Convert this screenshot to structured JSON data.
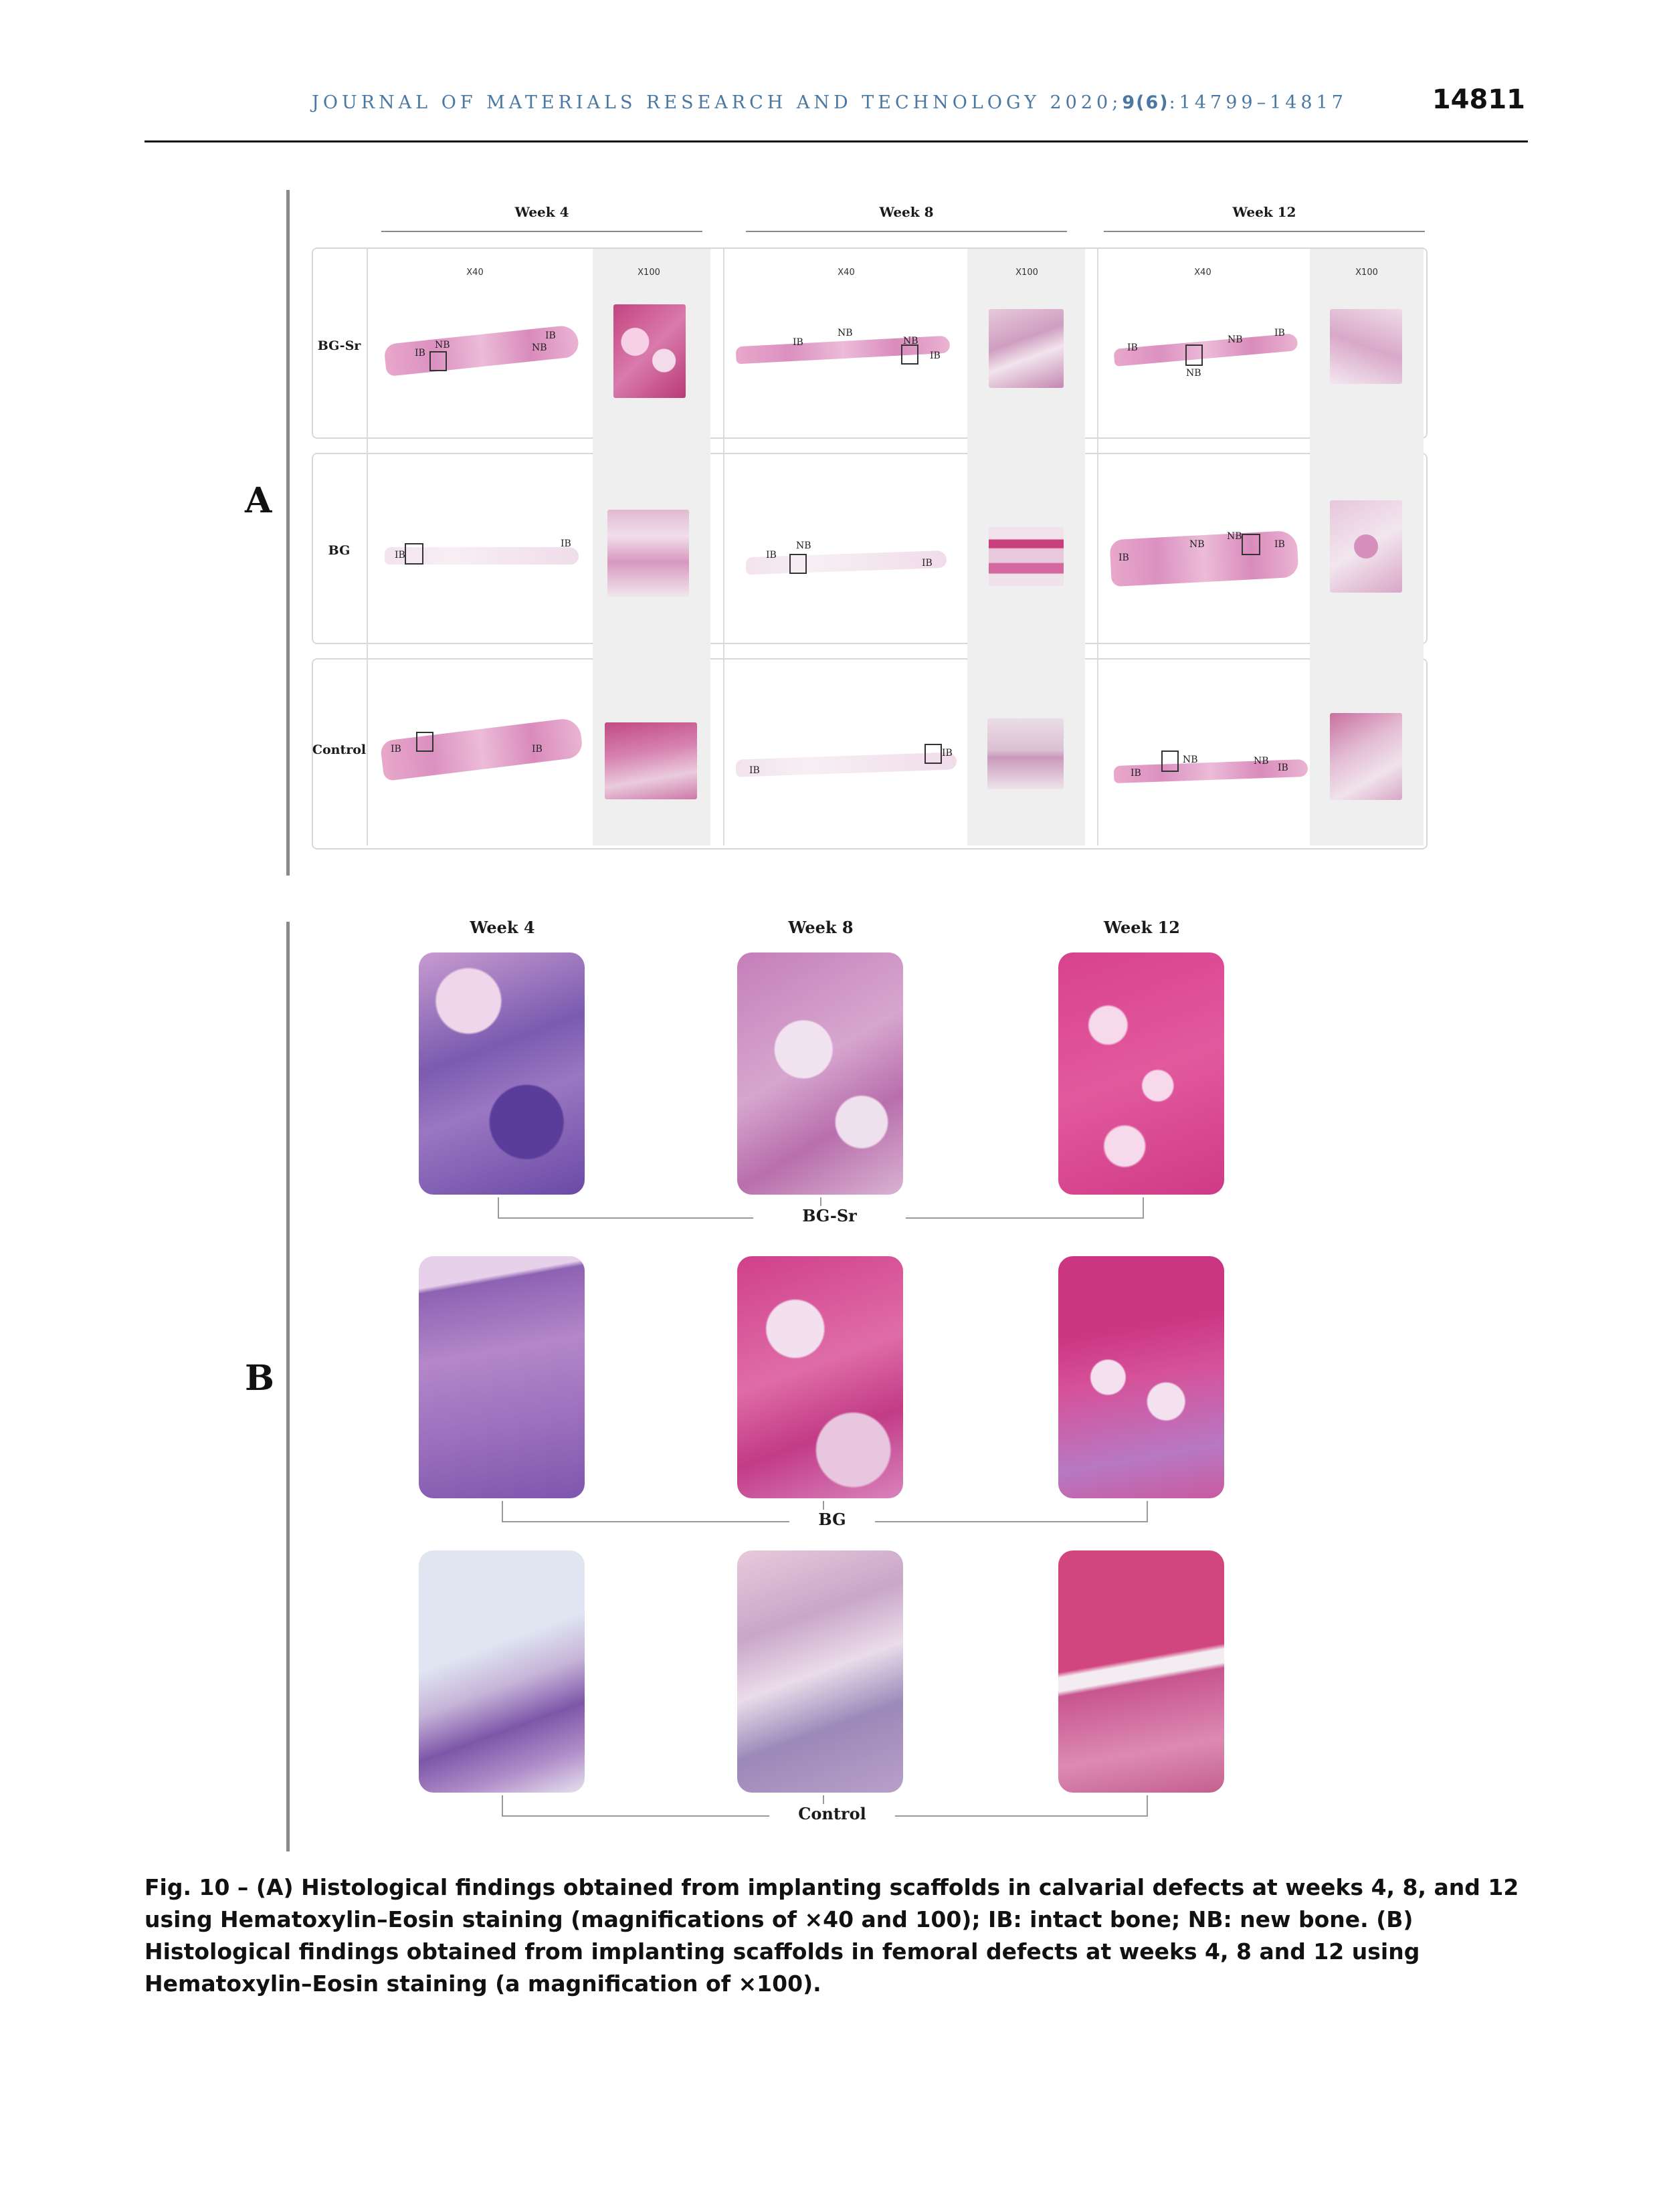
{
  "header": {
    "journal_prefix": "JOURNAL OF MATERIALS RESEARCH AND TECHNOLOGY 2020;",
    "journal_volume": "9(6)",
    "journal_pages": ":14799–14817",
    "page_number": "14811"
  },
  "figure": {
    "panel_a": {
      "letter": "A",
      "weeks": [
        "Week 4",
        "Week 8",
        "Week 12"
      ],
      "magnifications": [
        "X40",
        "X100"
      ],
      "rows": [
        "BG-Sr",
        "BG",
        "Control"
      ],
      "tags": {
        "ib": "IB",
        "nb": "NB"
      }
    },
    "panel_b": {
      "letter": "B",
      "weeks": [
        "Week 4",
        "Week 8",
        "Week 12"
      ],
      "groups": [
        "BG-Sr",
        "BG",
        "Control"
      ]
    }
  },
  "caption": "Fig. 10 – (A) Histological findings obtained from implanting scaffolds in calvarial defects at weeks 4, 8, and 12 using Hematoxylin–Eosin staining (magnifications of ×40 and 100); IB: intact bone; NB: new bone. (B) Histological findings obtained from implanting scaffolds in femoral defects at weeks 4, 8 and 12 using Hematoxylin–Eosin staining (a magnification of ×100)."
}
